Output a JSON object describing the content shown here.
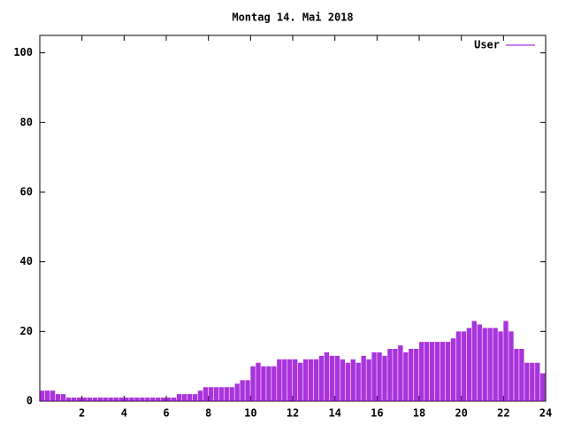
{
  "chart_data": {
    "type": "impulses",
    "title": "Montag 14. Mai 2018",
    "x": [
      0,
      0.25,
      0.5,
      0.75,
      1,
      1.25,
      1.5,
      1.75,
      2,
      2.25,
      2.5,
      2.75,
      3,
      3.25,
      3.5,
      3.75,
      4,
      4.25,
      4.5,
      4.75,
      5,
      5.25,
      5.5,
      5.75,
      6,
      6.25,
      6.5,
      6.75,
      7,
      7.25,
      7.5,
      7.75,
      8,
      8.25,
      8.5,
      8.75,
      9,
      9.25,
      9.5,
      9.75,
      10,
      10.25,
      10.5,
      10.75,
      11,
      11.25,
      11.5,
      11.75,
      12,
      12.25,
      12.5,
      12.75,
      13,
      13.25,
      13.5,
      13.75,
      14,
      14.25,
      14.5,
      14.75,
      15,
      15.25,
      15.5,
      15.75,
      16,
      16.25,
      16.5,
      16.75,
      17,
      17.25,
      17.5,
      17.75,
      18,
      18.25,
      18.5,
      18.75,
      19,
      19.25,
      19.5,
      19.75,
      20,
      20.25,
      20.5,
      20.75,
      21,
      21.25,
      21.5,
      21.75,
      22,
      22.25,
      22.5,
      22.75,
      23,
      23.25,
      23.5,
      23.75
    ],
    "series": [
      {
        "name": "User",
        "color": "#9400d3",
        "values": [
          3,
          3,
          3,
          2,
          2,
          1,
          1,
          1,
          1,
          1,
          1,
          1,
          1,
          1,
          1,
          1,
          1,
          1,
          1,
          1,
          1,
          1,
          1,
          1,
          1,
          1,
          2,
          2,
          2,
          2,
          3,
          4,
          4,
          4,
          4,
          4,
          4,
          5,
          6,
          6,
          10,
          11,
          10,
          10,
          10,
          12,
          12,
          12,
          12,
          11,
          12,
          12,
          12,
          13,
          14,
          13,
          13,
          12,
          11,
          12,
          11,
          13,
          12,
          14,
          14,
          13,
          15,
          15,
          16,
          14,
          15,
          15,
          17,
          17,
          17,
          17,
          17,
          17,
          18,
          20,
          20,
          21,
          23,
          22,
          21,
          21,
          21,
          20,
          23,
          20,
          15,
          15,
          11,
          11,
          11,
          8
        ]
      }
    ],
    "xlim": [
      0,
      24
    ],
    "xticks": [
      2,
      4,
      6,
      8,
      10,
      12,
      14,
      16,
      18,
      20,
      22,
      24
    ],
    "ylim": [
      0,
      105
    ],
    "yticks": [
      0,
      20,
      40,
      60,
      80,
      100
    ],
    "legend": "upper right"
  }
}
